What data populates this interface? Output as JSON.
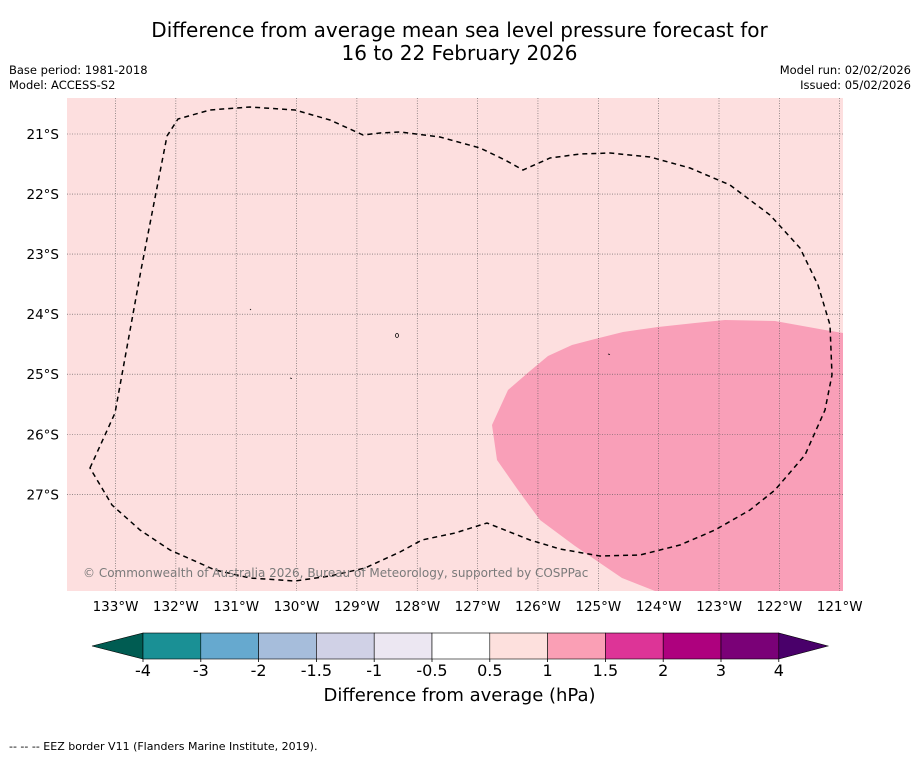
{
  "header": {
    "title_line1": "Difference from average mean sea level pressure forecast for",
    "title_line2": "16 to 22 February 2026",
    "base_period": "Base period: 1981-2018",
    "model": "Model: ACCESS-S2",
    "model_run": "Model run: 02/02/2026",
    "issued": "Issued: 05/02/2026"
  },
  "map": {
    "lat_labels": [
      "21°S",
      "22°S",
      "23°S",
      "24°S",
      "25°S",
      "26°S",
      "27°S"
    ],
    "lon_labels": [
      "133°W",
      "132°W",
      "131°W",
      "130°W",
      "129°W",
      "128°W",
      "127°W",
      "126°W",
      "125°W",
      "124°W",
      "123°W",
      "122°W",
      "121°W"
    ],
    "copyright": "© Commonwealth of Australia 2026, Bureau of Meteorology, supported by COSPPac",
    "colors": {
      "background_fill": "#fddfdf",
      "anomaly_fill": "#f99fb8",
      "eez_border": "#000000"
    }
  },
  "colorbar": {
    "ticks": [
      "-4",
      "-3",
      "-2",
      "-1.5",
      "-1",
      "-0.5",
      "0.5",
      "1",
      "1.5",
      "2",
      "3",
      "4"
    ],
    "colors": [
      "#005c52",
      "#1a9095",
      "#66a9cf",
      "#a6bddb",
      "#d0d1e6",
      "#ece7f2",
      "#ffffff",
      "#fde0dd",
      "#fa9fb5",
      "#dd3497",
      "#ae017e",
      "#7a0177",
      "#49006a"
    ],
    "label": "Difference from average (hPa)"
  },
  "footnote": "--  --  -- EEZ border V11 (Flanders Marine Institute, 2019)."
}
